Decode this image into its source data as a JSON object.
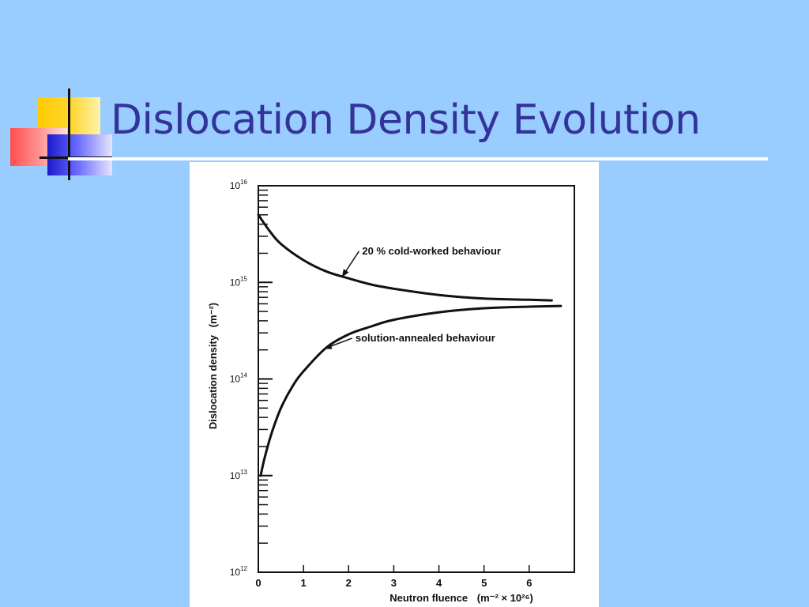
{
  "slide": {
    "title": "Dislocation Density Evolution"
  },
  "colors": {
    "background": "#99ccff",
    "title": "#333399",
    "rule": "#ffffff",
    "plot_ink": "#111111"
  },
  "chart_data": {
    "type": "line",
    "title": "",
    "xlabel": "Neutron fluence",
    "xlabel_units": "(m⁻² × 10²⁶)",
    "ylabel": "Dislocation density",
    "ylabel_units": "(m⁻²)",
    "xlim": [
      0,
      7
    ],
    "ylim": [
      1000000000000.0,
      1e+16
    ],
    "yscale": "log",
    "x_ticks": [
      "0",
      "1",
      "2",
      "3",
      "4",
      "5",
      "6"
    ],
    "y_ticks": [
      {
        "base": "10",
        "exp": "12"
      },
      {
        "base": "10",
        "exp": "13"
      },
      {
        "base": "10",
        "exp": "14"
      },
      {
        "base": "10",
        "exp": "15"
      },
      {
        "base": "10",
        "exp": "16"
      }
    ],
    "grid": false,
    "legend": "none",
    "series": [
      {
        "name": "20 % cold-worked behaviour",
        "x": [
          0,
          0.25,
          0.5,
          1.0,
          1.5,
          2.0,
          2.5,
          3.0,
          4.0,
          5.0,
          6.0,
          6.5
        ],
        "y": [
          5000000000000000.0,
          3400000000000000.0,
          2500000000000000.0,
          1700000000000000.0,
          1300000000000000.0,
          1100000000000000.0,
          950000000000000.0,
          860000000000000.0,
          740000000000000.0,
          680000000000000.0,
          660000000000000.0,
          650000000000000.0
        ]
      },
      {
        "name": "solution-annealed behaviour",
        "x": [
          0.05,
          0.15,
          0.3,
          0.5,
          0.75,
          1.0,
          1.5,
          2.0,
          2.5,
          3.0,
          4.0,
          5.0,
          6.0,
          6.7
        ],
        "y": [
          10000000000000.0,
          16000000000000.0,
          28000000000000.0,
          50000000000000.0,
          83000000000000.0,
          120000000000000.0,
          210000000000000.0,
          290000000000000.0,
          350000000000000.0,
          410000000000000.0,
          490000000000000.0,
          540000000000000.0,
          560000000000000.0,
          570000000000000.0
        ]
      }
    ],
    "annotations": [
      {
        "text": "20 % cold-worked behaviour",
        "series": 0,
        "text_x": 2.3,
        "text_y": 1950000000000000.0,
        "arrow_to_x": 1.85,
        "arrow_to_y": 1130000000000000.0
      },
      {
        "text": "solution-annealed behaviour",
        "series": 1,
        "text_x": 2.15,
        "text_y": 245000000000000.0,
        "arrow_to_x": 1.45,
        "arrow_to_y": 205000000000000.0
      }
    ]
  }
}
